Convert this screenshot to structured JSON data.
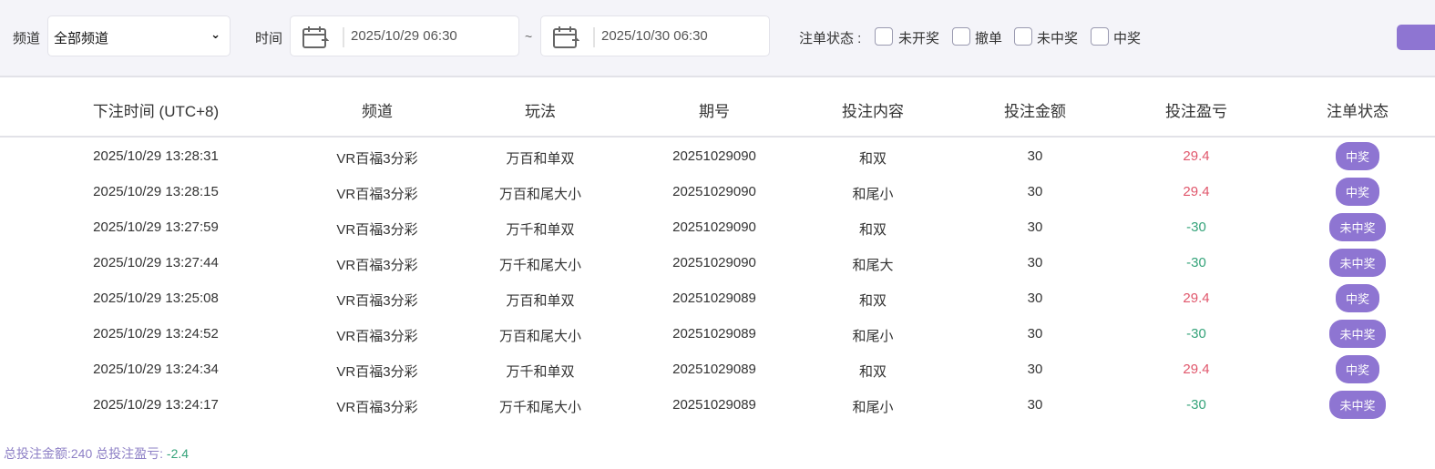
{
  "filters": {
    "channel_label": "频道",
    "channel_value": "全部频道",
    "time_label": "时间",
    "start_date": "2025/10/29 06:30",
    "separator": "~",
    "end_date": "2025/10/30 06:30",
    "status_label": "注单状态 :",
    "status_options": [
      {
        "label": "未开奖",
        "checked": false
      },
      {
        "label": "撤单",
        "checked": false
      },
      {
        "label": "未中奖",
        "checked": false
      },
      {
        "label": "中奖",
        "checked": false
      }
    ],
    "button_color": "#8e75d2"
  },
  "table": {
    "columns": [
      "下注时间 (UTC+8)",
      "频道",
      "玩法",
      "期号",
      "投注内容",
      "投注金额",
      "投注盈亏",
      "注单状态"
    ],
    "rows": [
      [
        "2025/10/29 13:28:31",
        "VR百福3分彩",
        "万百和单双",
        "20251029090",
        "和双",
        "30",
        "29.4",
        "中奖"
      ],
      [
        "2025/10/29 13:28:15",
        "VR百福3分彩",
        "万百和尾大小",
        "20251029090",
        "和尾小",
        "30",
        "29.4",
        "中奖"
      ],
      [
        "2025/10/29 13:27:59",
        "VR百福3分彩",
        "万千和单双",
        "20251029090",
        "和双",
        "30",
        "-30",
        "未中奖"
      ],
      [
        "2025/10/29 13:27:44",
        "VR百福3分彩",
        "万千和尾大小",
        "20251029090",
        "和尾大",
        "30",
        "-30",
        "未中奖"
      ],
      [
        "2025/10/29 13:25:08",
        "VR百福3分彩",
        "万百和单双",
        "20251029089",
        "和双",
        "30",
        "29.4",
        "中奖"
      ],
      [
        "2025/10/29 13:24:52",
        "VR百福3分彩",
        "万百和尾大小",
        "20251029089",
        "和尾小",
        "30",
        "-30",
        "未中奖"
      ],
      [
        "2025/10/29 13:24:34",
        "VR百福3分彩",
        "万千和单双",
        "20251029089",
        "和双",
        "30",
        "29.4",
        "中奖"
      ],
      [
        "2025/10/29 13:24:17",
        "VR百福3分彩",
        "万千和尾大小",
        "20251029089",
        "和尾小",
        "30",
        "-30",
        "未中奖"
      ]
    ]
  },
  "footer": {
    "total_bet_label": "总投注金额:",
    "total_bet": "240",
    "total_pl_label": "总投注盈亏:",
    "total_pl": "-2.4"
  },
  "colors": {
    "win": "#e0566b",
    "loss": "#35a37a",
    "accent": "#8e75d2"
  }
}
